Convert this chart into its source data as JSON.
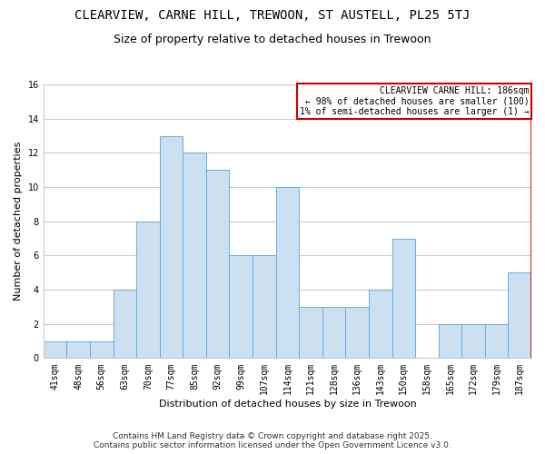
{
  "title": "CLEARVIEW, CARNE HILL, TREWOON, ST AUSTELL, PL25 5TJ",
  "subtitle": "Size of property relative to detached houses in Trewoon",
  "xlabel": "Distribution of detached houses by size in Trewoon",
  "ylabel": "Number of detached properties",
  "bins": [
    "41sqm",
    "48sqm",
    "56sqm",
    "63sqm",
    "70sqm",
    "77sqm",
    "85sqm",
    "92sqm",
    "99sqm",
    "107sqm",
    "114sqm",
    "121sqm",
    "128sqm",
    "136sqm",
    "143sqm",
    "150sqm",
    "158sqm",
    "165sqm",
    "172sqm",
    "179sqm",
    "187sqm"
  ],
  "values": [
    1,
    1,
    1,
    4,
    8,
    13,
    12,
    11,
    6,
    6,
    10,
    3,
    3,
    3,
    4,
    7,
    0,
    2,
    2,
    2,
    5
  ],
  "bar_fill_color": "#cce0f0",
  "bar_edge_color": "#6aace0",
  "highlight_edge_color": "#cc0000",
  "ylim": [
    0,
    16
  ],
  "yticks": [
    0,
    2,
    4,
    6,
    8,
    10,
    12,
    14,
    16
  ],
  "annotation_title": "CLEARVIEW CARNE HILL: 186sqm",
  "annotation_line1": "← 98% of detached houses are smaller (100)",
  "annotation_line2": "1% of semi-detached houses are larger (1) →",
  "annotation_box_color": "#ffffff",
  "annotation_box_edge_color": "#cc0000",
  "footer_line1": "Contains HM Land Registry data © Crown copyright and database right 2025.",
  "footer_line2": "Contains public sector information licensed under the Open Government Licence v3.0.",
  "bg_color": "#ffffff",
  "grid_color": "#cccccc",
  "title_fontsize": 10,
  "subtitle_fontsize": 9,
  "axis_label_fontsize": 8,
  "tick_fontsize": 7,
  "annotation_fontsize": 7,
  "footer_fontsize": 6.5
}
